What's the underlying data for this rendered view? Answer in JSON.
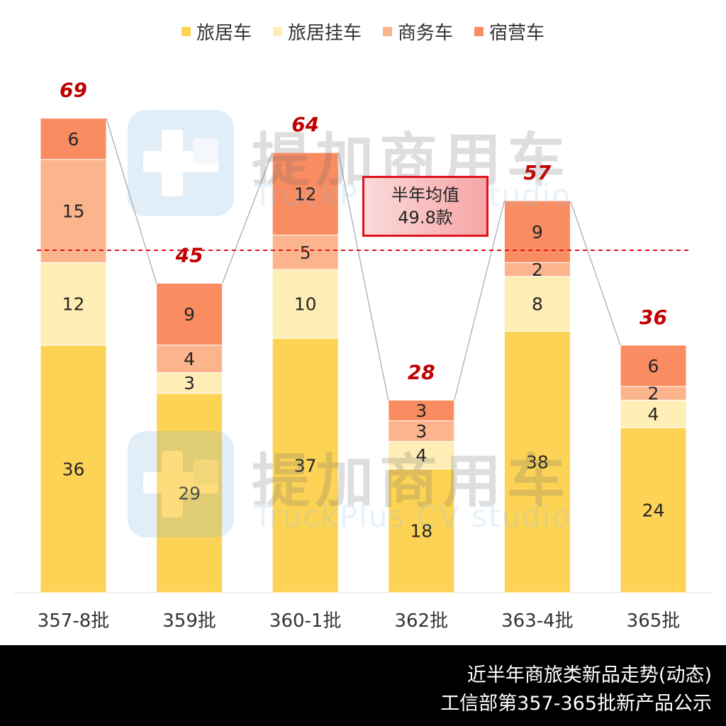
{
  "legend": {
    "items": [
      {
        "label": "旅居车",
        "color": "#FDD356"
      },
      {
        "label": "旅居挂车",
        "color": "#FEEDB5"
      },
      {
        "label": "商务车",
        "color": "#FBB48C"
      },
      {
        "label": "宿营车",
        "color": "#F98C61"
      }
    ]
  },
  "watermark": {
    "cn": "提加商用车",
    "en": "TruckPlus CV studio"
  },
  "average": {
    "line1": "半年均值",
    "line2": "49.8款"
  },
  "footer": {
    "line1": "近半年商旅类新品走势(动态)",
    "line2": "工信部第357-365批新产品公示"
  },
  "chart_data": {
    "type": "bar",
    "stacked": true,
    "categories": [
      "357-8批",
      "359批",
      "360-1批",
      "362批",
      "363-4批",
      "365批"
    ],
    "series": [
      {
        "name": "旅居车",
        "color": "#FDD356",
        "values": [
          36,
          29,
          37,
          18,
          38,
          24
        ]
      },
      {
        "name": "旅居挂车",
        "color": "#FEEDB5",
        "values": [
          12,
          3,
          10,
          4,
          8,
          4
        ]
      },
      {
        "name": "商务车",
        "color": "#FBB48C",
        "values": [
          15,
          4,
          5,
          3,
          2,
          2
        ]
      },
      {
        "name": "宿营车",
        "color": "#F98C61",
        "values": [
          6,
          9,
          12,
          3,
          9,
          6
        ]
      }
    ],
    "totals": [
      69,
      45,
      64,
      28,
      57,
      36
    ],
    "average_line": 49.8,
    "ylim": [
      0,
      69
    ],
    "legend_position": "top-center",
    "grid": false
  }
}
